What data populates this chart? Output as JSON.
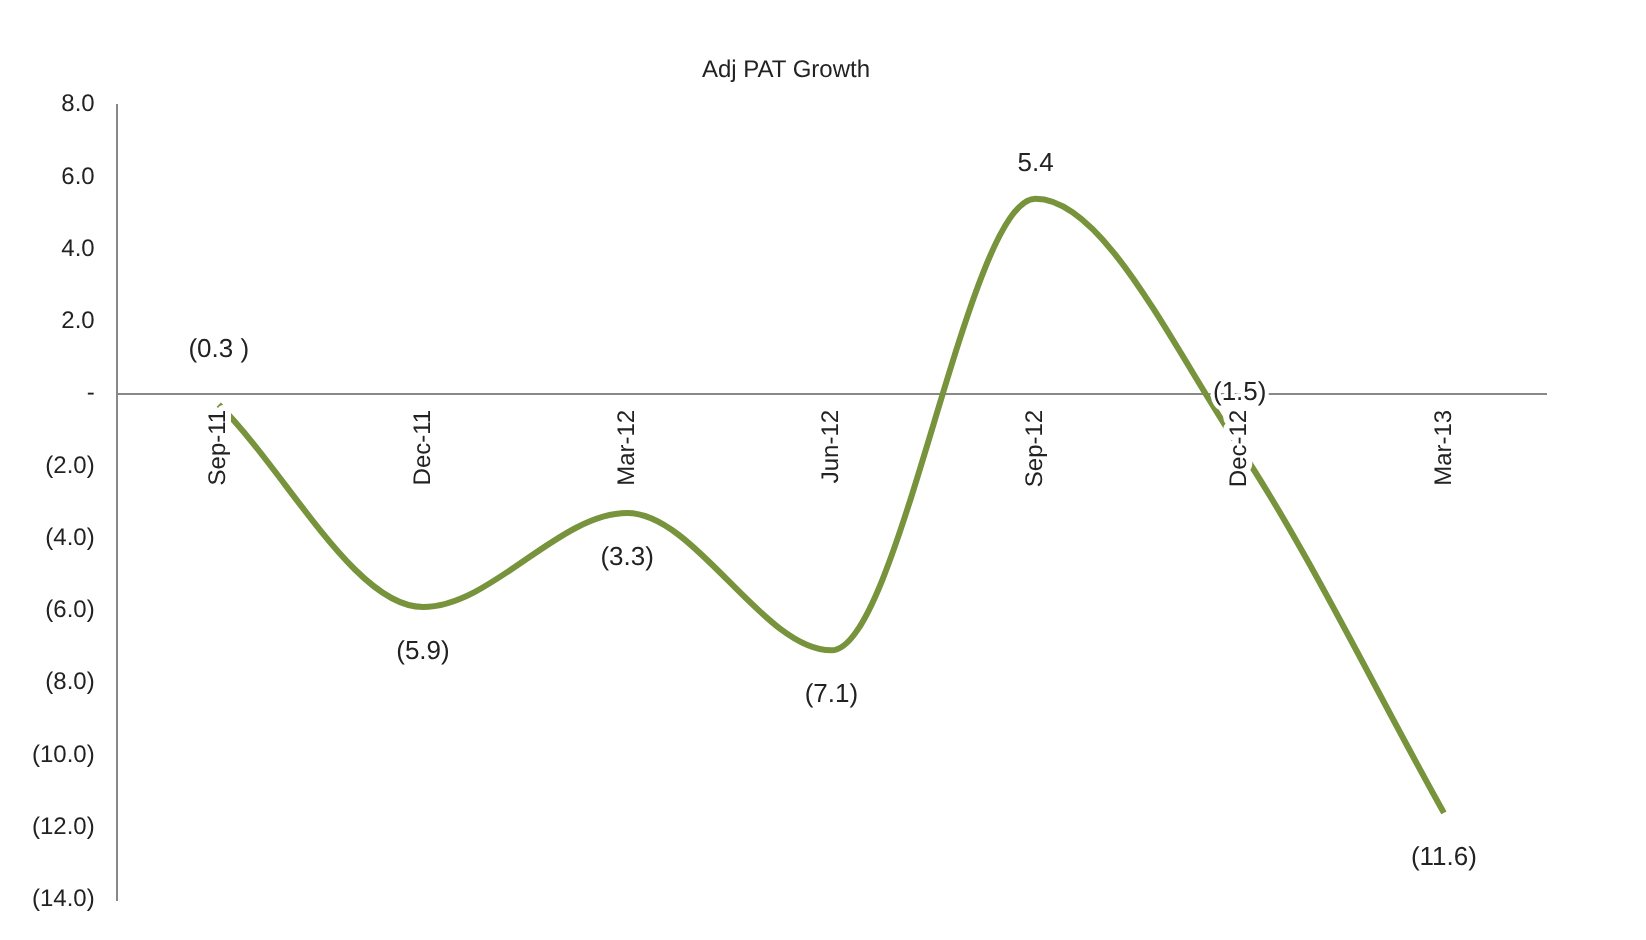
{
  "chart_data": {
    "type": "line",
    "title": "Adj PAT Growth",
    "categories": [
      "Sep-11",
      "Dec-11",
      "Mar-12",
      "Jun-12",
      "Sep-12",
      "Dec-12",
      "Mar-13"
    ],
    "series": [
      {
        "color": "#77933c",
        "values": [
          -0.3,
          -5.9,
          -3.3,
          -7.1,
          5.4,
          -1.5,
          -11.6
        ],
        "value_labels": [
          "(0.3 )",
          "(5.9)",
          "(3.3)",
          "(7.1)",
          "5.4",
          "(1.5)",
          "(11.6)"
        ]
      }
    ],
    "ylim": [
      -14,
      8
    ],
    "yticks": [
      {
        "value": -14,
        "label": "(14.0)"
      },
      {
        "value": -12,
        "label": "(12.0)"
      },
      {
        "value": -10,
        "label": "(10.0)"
      },
      {
        "value": -8,
        "label": "(8.0)"
      },
      {
        "value": -6,
        "label": "(6.0)"
      },
      {
        "value": -4,
        "label": "(4.0)"
      },
      {
        "value": -2,
        "label": "(2.0)"
      },
      {
        "value": 0,
        "label": "-"
      },
      {
        "value": 2,
        "label": "2.0"
      },
      {
        "value": 4,
        "label": "4.0"
      },
      {
        "value": 6,
        "label": "6.0"
      },
      {
        "value": 8,
        "label": "8.0"
      }
    ],
    "grid": false,
    "legend": false,
    "marker": "none",
    "line_style": "solid"
  }
}
